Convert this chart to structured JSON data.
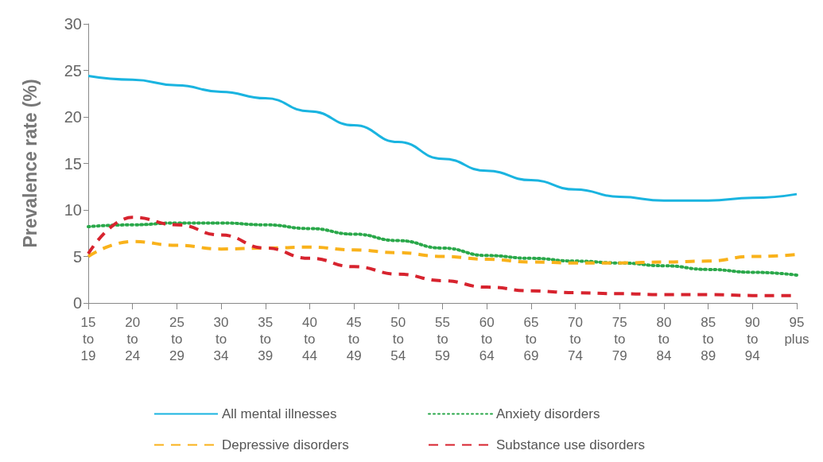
{
  "chart_data": {
    "type": "line",
    "ylabel": "Prevalence rate (%)",
    "categories": [
      "15 to 19",
      "20 to 24",
      "25 to 29",
      "30 to 34",
      "35 to 39",
      "40 to 44",
      "45 to 49",
      "50 to 54",
      "55 to 59",
      "60 to 64",
      "65 to 69",
      "70 to 74",
      "75 to 79",
      "80 to 84",
      "85 to 89",
      "90 to 94",
      "95 plus"
    ],
    "series": [
      {
        "name": "All mental illnesses",
        "color": "#1ab4e0",
        "line_style": "solid",
        "values": [
          24.4,
          24.0,
          23.4,
          22.7,
          22.0,
          20.6,
          19.1,
          17.3,
          15.5,
          14.2,
          13.2,
          12.2,
          11.4,
          11.0,
          11.0,
          11.3,
          11.7
        ]
      },
      {
        "name": "Anxiety disorders",
        "color": "#2aa84a",
        "line_style": "dotted",
        "values": [
          8.2,
          8.4,
          8.6,
          8.6,
          8.4,
          8.0,
          7.4,
          6.7,
          5.9,
          5.1,
          4.8,
          4.5,
          4.3,
          4.0,
          3.6,
          3.3,
          3.0
        ]
      },
      {
        "name": "Depressive disorders",
        "color": "#f9b21b",
        "line_style": "dashed",
        "values": [
          5.0,
          6.6,
          6.2,
          5.8,
          5.9,
          6.0,
          5.7,
          5.4,
          5.0,
          4.7,
          4.4,
          4.3,
          4.3,
          4.4,
          4.5,
          5.0,
          5.2
        ]
      },
      {
        "name": "Substance use disorders",
        "color": "#d7232e",
        "line_style": "dashed",
        "values": [
          5.3,
          9.2,
          8.4,
          7.3,
          5.9,
          4.8,
          3.9,
          3.1,
          2.4,
          1.7,
          1.3,
          1.1,
          1.0,
          0.9,
          0.9,
          0.8,
          0.8
        ]
      }
    ],
    "ylim": [
      0,
      30
    ],
    "yticks": [
      0,
      5,
      10,
      15,
      20,
      25,
      30
    ],
    "grid": false,
    "legend": "bottom",
    "marker": "none"
  }
}
